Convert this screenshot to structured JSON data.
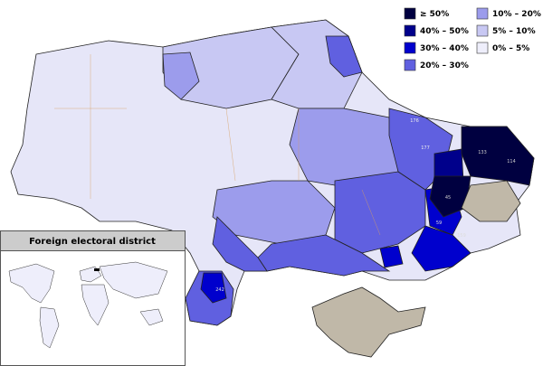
{
  "legend": {
    "items": [
      {
        "label": "≥ 50%",
        "color": "#000040"
      },
      {
        "label": "40% – 50%",
        "color": "#00008b"
      },
      {
        "label": "30% – 40%",
        "color": "#0000cd"
      },
      {
        "label": "20% – 30%",
        "color": "#6060e0"
      },
      {
        "label": "10% – 20%",
        "color": "#9c9cec"
      },
      {
        "label": "5% – 10%",
        "color": "#c8c8f3"
      },
      {
        "label": "0% – 5%",
        "color": "#eeeefb"
      }
    ]
  },
  "inset": {
    "title": "Foreign electoral district"
  },
  "district_labels": [
    "133",
    "114",
    "242",
    "45",
    "176",
    "177",
    "159",
    "59"
  ]
}
